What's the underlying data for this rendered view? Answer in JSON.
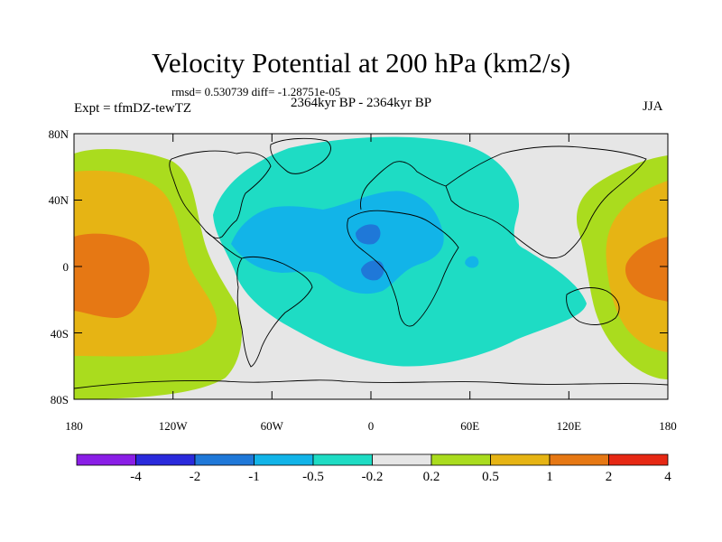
{
  "title": "Velocity Potential at 200 hPa (km2/s)",
  "stats": "rmsd= 0.530739 diff= -1.28751e-05",
  "period": "2364kyr BP - 2364kyr BP",
  "experiment": "Expt = tfmDZ-tewTZ",
  "season": "JJA",
  "lat_ticks": [
    "80N",
    "40N",
    "0",
    "40S",
    "80S"
  ],
  "lon_ticks": [
    "180",
    "120W",
    "60W",
    "0",
    "60E",
    "120E",
    "180"
  ],
  "colorbar": {
    "labels": [
      "-4",
      "-2",
      "-1",
      "-0.5",
      "-0.2",
      "0.2",
      "0.5",
      "1",
      "2",
      "4"
    ],
    "colors": [
      "#8a1ee6",
      "#2a2adc",
      "#1f78d8",
      "#12b4e8",
      "#1edcc4",
      "#e6e6e6",
      "#aadc1e",
      "#e6b414",
      "#e67814",
      "#e62814"
    ]
  }
}
